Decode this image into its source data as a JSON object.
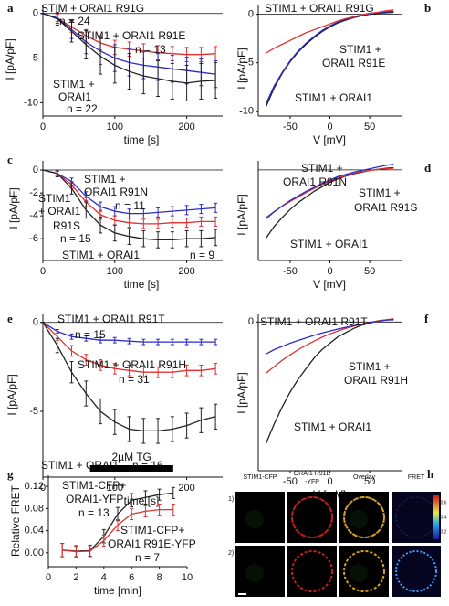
{
  "chart_data": [
    {
      "type": "line",
      "label": "a",
      "xlabel": "time [s]",
      "ylabel": "I [pA/pF]",
      "zero_line": true,
      "x": [
        0,
        20,
        40,
        60,
        80,
        100,
        120,
        140,
        160,
        180,
        200,
        220,
        240
      ],
      "xlim": [
        0,
        250
      ],
      "xticks": [
        0,
        100,
        200
      ],
      "ylim": [
        -11.5,
        1
      ],
      "yticks": [
        0,
        -5,
        -10
      ],
      "series": [
        {
          "color": "#e03030",
          "values": [
            0,
            -0.5,
            -1.5,
            -2.5,
            -3.3,
            -3.8,
            -4,
            -4.2,
            -4.4,
            -4.5,
            -4.6,
            -4.6,
            -4.5
          ],
          "errors": [
            0,
            0.4,
            0.6,
            0.7,
            0.8,
            0.8,
            0.8,
            0.8,
            0.8,
            0.8,
            0.8,
            0.8,
            0.8
          ]
        },
        {
          "color": "#2b2bc8",
          "values": [
            0,
            -0.5,
            -1.8,
            -3.2,
            -4.2,
            -5,
            -5.5,
            -5.8,
            -6,
            -6.2,
            -6.4,
            -6.6,
            -6.8
          ],
          "errors": [
            0,
            0.6,
            1,
            1.3,
            1.5,
            1.5,
            1.5,
            1.5,
            1.5,
            1.5,
            1.5,
            1.5,
            1.5
          ]
        },
        {
          "color": "#222222",
          "values": [
            0,
            -0.6,
            -2,
            -3.5,
            -4.8,
            -5.8,
            -6.5,
            -7,
            -7.3,
            -7.6,
            -7.8,
            -7.6,
            -7.5
          ],
          "errors": [
            0,
            0.7,
            1.2,
            1.6,
            2,
            2,
            2,
            2,
            2,
            2,
            2,
            2,
            2
          ]
        }
      ],
      "annotations": [
        {
          "text": "STIM + ORAI1 R91G",
          "color": "#e03030"
        },
        {
          "text": "n = 24",
          "color": "#e03030"
        },
        {
          "text": "STIM1 + ORAI1 R91E",
          "color": "#2b2bc8"
        },
        {
          "text": "n = 13",
          "color": "#2b2bc8"
        },
        {
          "text": "STIM1 +",
          "color": "#222222"
        },
        {
          "text": "ORAI1",
          "color": "#222222"
        },
        {
          "text": "n = 22",
          "color": "#222222"
        }
      ]
    },
    {
      "type": "line",
      "label": "b",
      "xlabel": "V [mV]",
      "ylabel": "I [pA/pF]",
      "zero_line": true,
      "x": [
        -80,
        -70,
        -60,
        -50,
        -40,
        -30,
        -20,
        -10,
        0,
        10,
        20,
        30,
        40,
        50,
        60,
        70,
        80
      ],
      "xlim": [
        -90,
        90
      ],
      "xticks": [
        -50,
        0,
        50
      ],
      "ylim": [
        -10.5,
        1
      ],
      "yticks": [
        0,
        -5,
        -10
      ],
      "series": [
        {
          "color": "#222222",
          "values": [
            -9.5,
            -7.6,
            -6.1,
            -4.9,
            -3.9,
            -3.1,
            -2.4,
            -1.8,
            -1.3,
            -0.9,
            -0.6,
            -0.35,
            -0.15,
            0,
            0.1,
            0.15,
            0.2
          ]
        },
        {
          "color": "#2b2bc8",
          "values": [
            -9.2,
            -7.4,
            -6,
            -4.8,
            -3.8,
            -3,
            -2.3,
            -1.7,
            -1.2,
            -0.8,
            -0.5,
            -0.3,
            -0.1,
            0.05,
            0.15,
            0.25,
            0.3
          ]
        },
        {
          "color": "#e03030",
          "values": [
            -4,
            -3.5,
            -3.1,
            -2.7,
            -2.3,
            -1.9,
            -1.6,
            -1.3,
            -1,
            -0.7,
            -0.45,
            -0.25,
            -0.05,
            0.1,
            0.2,
            0.35,
            0.45
          ]
        }
      ],
      "annotations": [
        {
          "text": "STIM1 + ORAI1 R91G",
          "color": "#e03030"
        },
        {
          "text": "STIM1 +",
          "color": "#2b2bc8"
        },
        {
          "text": "ORAI1 R91E",
          "color": "#2b2bc8"
        },
        {
          "text": "STIM1 + ORAI1",
          "color": "#222222"
        }
      ]
    },
    {
      "type": "line",
      "label": "c",
      "xlabel": "time [s]",
      "ylabel": "I [pA/pF]",
      "zero_line": true,
      "x": [
        0,
        20,
        40,
        60,
        80,
        100,
        120,
        140,
        160,
        180,
        200,
        220,
        240
      ],
      "xlim": [
        0,
        250
      ],
      "xticks": [
        0,
        100,
        200
      ],
      "ylim": [
        -7.9,
        0.8
      ],
      "yticks": [
        0,
        -2,
        -4,
        -6
      ],
      "series": [
        {
          "color": "#2b2bc8",
          "values": [
            0,
            -0.3,
            -1,
            -2.3,
            -3.2,
            -3.6,
            -3.8,
            -3.8,
            -3.7,
            -3.6,
            -3.5,
            -3.4,
            -3.3
          ],
          "errors": [
            0,
            0.2,
            0.3,
            0.4,
            0.4,
            0.4,
            0.4,
            0.4,
            0.4,
            0.4,
            0.4,
            0.4,
            0.4
          ]
        },
        {
          "color": "#e03030",
          "values": [
            0,
            -0.3,
            -1.3,
            -2.8,
            -3.9,
            -4.4,
            -4.6,
            -4.7,
            -4.7,
            -4.6,
            -4.6,
            -4.5,
            -4.5
          ],
          "errors": [
            0,
            0.2,
            0.3,
            0.4,
            0.4,
            0.4,
            0.4,
            0.4,
            0.4,
            0.4,
            0.4,
            0.4,
            0.4
          ]
        },
        {
          "color": "#222222",
          "values": [
            0,
            -0.3,
            -1.6,
            -3.5,
            -4.8,
            -5.5,
            -5.8,
            -6,
            -6.1,
            -6.1,
            -6,
            -6,
            -5.9
          ],
          "errors": [
            0,
            0.3,
            0.5,
            0.7,
            0.7,
            0.7,
            0.7,
            0.7,
            0.7,
            0.7,
            0.7,
            0.7,
            0.7
          ]
        }
      ],
      "annotations": [
        {
          "text": "STIM1 +",
          "color": "#2b2bc8"
        },
        {
          "text": "ORAI1 R91N",
          "color": "#2b2bc8"
        },
        {
          "text": "n = 11",
          "color": "#2b2bc8"
        },
        {
          "text": "STIM1",
          "color": "#e03030"
        },
        {
          "text": "+ ORAI1",
          "color": "#e03030"
        },
        {
          "text": "R91S",
          "color": "#e03030"
        },
        {
          "text": "n = 15",
          "color": "#e03030"
        },
        {
          "text": "STIM1 + ORAI1",
          "color": "#222222"
        },
        {
          "text": "n = 9",
          "color": "#222222"
        }
      ]
    },
    {
      "type": "line",
      "label": "d",
      "xlabel": "V [mV]",
      "ylabel": "I [pA/pF]",
      "zero_line": true,
      "x": [
        -80,
        -70,
        -60,
        -50,
        -40,
        -30,
        -20,
        -10,
        0,
        10,
        20,
        30,
        40,
        50,
        60,
        70,
        80
      ],
      "xlim": [
        -90,
        90
      ],
      "xticks": [
        -50,
        0,
        50
      ],
      "ylim": [
        -8,
        0.8
      ],
      "series": [
        {
          "color": "#222222",
          "values": [
            -6,
            -5,
            -4.2,
            -3.5,
            -2.9,
            -2.4,
            -1.9,
            -1.5,
            -1.1,
            -0.8,
            -0.55,
            -0.35,
            -0.2,
            -0.05,
            0.05,
            0.15,
            0.2
          ]
        },
        {
          "color": "#e03030",
          "values": [
            -4.2,
            -3.7,
            -3.2,
            -2.8,
            -2.4,
            -2,
            -1.65,
            -1.3,
            -1,
            -0.7,
            -0.5,
            -0.3,
            -0.15,
            -0.05,
            0.05,
            0.1,
            0.15
          ]
        },
        {
          "color": "#2b2bc8",
          "values": [
            -4.3,
            -3.7,
            -3.2,
            -2.7,
            -2.3,
            -1.9,
            -1.55,
            -1.2,
            -0.9,
            -0.6,
            -0.4,
            -0.2,
            -0.05,
            0.1,
            0.25,
            0.4,
            0.5
          ]
        }
      ],
      "annotations": [
        {
          "text": "STIM1 +",
          "color": "#2b2bc8"
        },
        {
          "text": "ORAI1 R91N",
          "color": "#2b2bc8"
        },
        {
          "text": "STIM1 +",
          "color": "#e03030"
        },
        {
          "text": "ORAI1 R91S",
          "color": "#e03030"
        },
        {
          "text": "STIM1 + ORAI1",
          "color": "#222222"
        }
      ]
    },
    {
      "type": "line",
      "label": "e",
      "xlabel": "time [s]",
      "ylabel": "I [pA/pF]",
      "zero_line": true,
      "x": [
        0,
        20,
        40,
        60,
        80,
        100,
        120,
        140,
        160,
        180,
        200,
        220,
        240
      ],
      "xlim": [
        0,
        250
      ],
      "xticks": [
        0,
        100,
        200
      ],
      "ylim": [
        -8.7,
        0.5
      ],
      "yticks": [
        0,
        -5
      ],
      "series": [
        {
          "color": "#2b2bc8",
          "values": [
            0,
            -0.5,
            -0.8,
            -0.9,
            -1,
            -1,
            -1.05,
            -1.1,
            -1.1,
            -1.1,
            -1.1,
            -1.1,
            -1.1
          ],
          "errors": [
            0,
            0.1,
            0.15,
            0.15,
            0.15,
            0.15,
            0.15,
            0.15,
            0.15,
            0.15,
            0.15,
            0.15,
            0.15
          ]
        },
        {
          "color": "#e03030",
          "values": [
            0,
            -0.8,
            -1.6,
            -2.1,
            -2.4,
            -2.6,
            -2.7,
            -2.8,
            -2.8,
            -2.8,
            -2.7,
            -2.7,
            -2.6
          ],
          "errors": [
            0,
            0.2,
            0.3,
            0.3,
            0.3,
            0.3,
            0.3,
            0.3,
            0.3,
            0.3,
            0.3,
            0.3,
            0.3
          ]
        },
        {
          "color": "#222222",
          "values": [
            0,
            -1.3,
            -2.8,
            -4,
            -5,
            -5.6,
            -6,
            -6.1,
            -6.1,
            -6,
            -5.8,
            -5.5,
            -5.3
          ],
          "errors": [
            0,
            0.4,
            0.6,
            0.7,
            0.7,
            0.7,
            0.7,
            0.7,
            0.7,
            0.7,
            0.7,
            0.7,
            0.7
          ]
        }
      ],
      "annotations": [
        {
          "text": "STIM1 + ORAI1 R91T",
          "color": "#2b2bc8"
        },
        {
          "text": "n = 15",
          "color": "#2b2bc8"
        },
        {
          "text": "STIM1 + ORAI1 R91H",
          "color": "#e03030"
        },
        {
          "text": "n = 31",
          "color": "#e03030"
        },
        {
          "text": "STIM1 + ORAI1",
          "color": "#222222"
        },
        {
          "text": "n = 16",
          "color": "#222222"
        }
      ]
    },
    {
      "type": "line",
      "label": "f",
      "xlabel": "V [mV]",
      "ylabel": "I [pA/pF]",
      "zero_line": true,
      "x": [
        -80,
        -70,
        -60,
        -50,
        -40,
        -30,
        -20,
        -10,
        0,
        10,
        20,
        30,
        40,
        50,
        60,
        70,
        80
      ],
      "xlim": [
        -90,
        90
      ],
      "xticks": [
        -50,
        0,
        50
      ],
      "ylim": [
        -7,
        0.4
      ],
      "yticks": [
        0
      ],
      "series": [
        {
          "color": "#222222",
          "values": [
            -5.7,
            -4.8,
            -4,
            -3.3,
            -2.7,
            -2.2,
            -1.7,
            -1.3,
            -1,
            -0.7,
            -0.5,
            -0.3,
            -0.15,
            -0.05,
            0.05,
            0.1,
            0.1
          ]
        },
        {
          "color": "#e03030",
          "values": [
            -2.4,
            -2.1,
            -1.8,
            -1.55,
            -1.3,
            -1.1,
            -0.9,
            -0.72,
            -0.56,
            -0.42,
            -0.3,
            -0.2,
            -0.1,
            -0.02,
            0.05,
            0.1,
            0.15
          ]
        },
        {
          "color": "#2b2bc8",
          "values": [
            -1.5,
            -1.3,
            -1.15,
            -1,
            -0.87,
            -0.75,
            -0.63,
            -0.52,
            -0.42,
            -0.33,
            -0.25,
            -0.17,
            -0.1,
            -0.03,
            0.03,
            0.08,
            0.12
          ]
        }
      ],
      "annotations": [
        {
          "text": "STIM1 + ORAI1 R91T",
          "color": "#2b2bc8"
        },
        {
          "text": "STIM1 +",
          "color": "#e03030"
        },
        {
          "text": "ORAI1 R91H",
          "color": "#e03030"
        },
        {
          "text": "STIM1 + ORAI1",
          "color": "#222222"
        }
      ]
    },
    {
      "type": "line",
      "label": "g",
      "xlabel": "time [min]",
      "ylabel": "Relative FRET",
      "zero_line": false,
      "x": [
        1,
        2,
        3,
        4,
        5,
        6,
        7,
        8,
        9
      ],
      "xlim": [
        0,
        10
      ],
      "xticks": [
        0,
        2,
        4,
        6,
        8,
        10
      ],
      "ylim": [
        -0.025,
        0.14
      ],
      "yticks": [
        {
          "value": 0,
          "label": "0.00"
        },
        {
          "value": 0.04,
          "label": "0.04"
        },
        {
          "value": 0.08,
          "label": "0.08"
        },
        {
          "value": 0.12,
          "label": "0.12"
        }
      ],
      "treatment": {
        "label": "2µM TG",
        "range": [
          3,
          9
        ]
      },
      "series": [
        {
          "color": "#222222",
          "values": [
            0.005,
            0.003,
            0.004,
            0.03,
            0.07,
            0.095,
            0.1,
            0.105,
            0.108
          ],
          "errors": [
            0.012,
            0.01,
            0.01,
            0.012,
            0.012,
            0.012,
            0.012,
            0.01,
            0.01
          ]
        },
        {
          "color": "#e03030",
          "values": [
            0.005,
            0.002,
            0.003,
            0.022,
            0.05,
            0.07,
            0.075,
            0.078,
            0.078
          ],
          "errors": [
            0.012,
            0.01,
            0.01,
            0.01,
            0.01,
            0.01,
            0.01,
            0.01,
            0.01
          ]
        }
      ],
      "annotations": [
        {
          "text": "STIM1-CFP+",
          "color": "#222222"
        },
        {
          "text": "ORAI1-YFP",
          "color": "#222222"
        },
        {
          "text": "n = 13",
          "color": "#222222"
        },
        {
          "text": "STIM1-CFP+",
          "color": "#e03030"
        },
        {
          "text": "ORAI1 R91E-YFP",
          "color": "#e03030"
        },
        {
          "text": "n = 7",
          "color": "#e03030"
        }
      ]
    }
  ],
  "image_panel": {
    "label": "h",
    "columns": [
      [
        "STIM1-CFP"
      ],
      [
        "ORAI1 R91E",
        "-YFP"
      ],
      [
        "Overlay"
      ],
      [
        "FRET"
      ]
    ],
    "rows": [
      "1)",
      "2)"
    ],
    "colorbar": {
      "range": [
        0.1,
        0.7
      ],
      "ticks": [
        0.6,
        0.4,
        0.2
      ]
    }
  }
}
